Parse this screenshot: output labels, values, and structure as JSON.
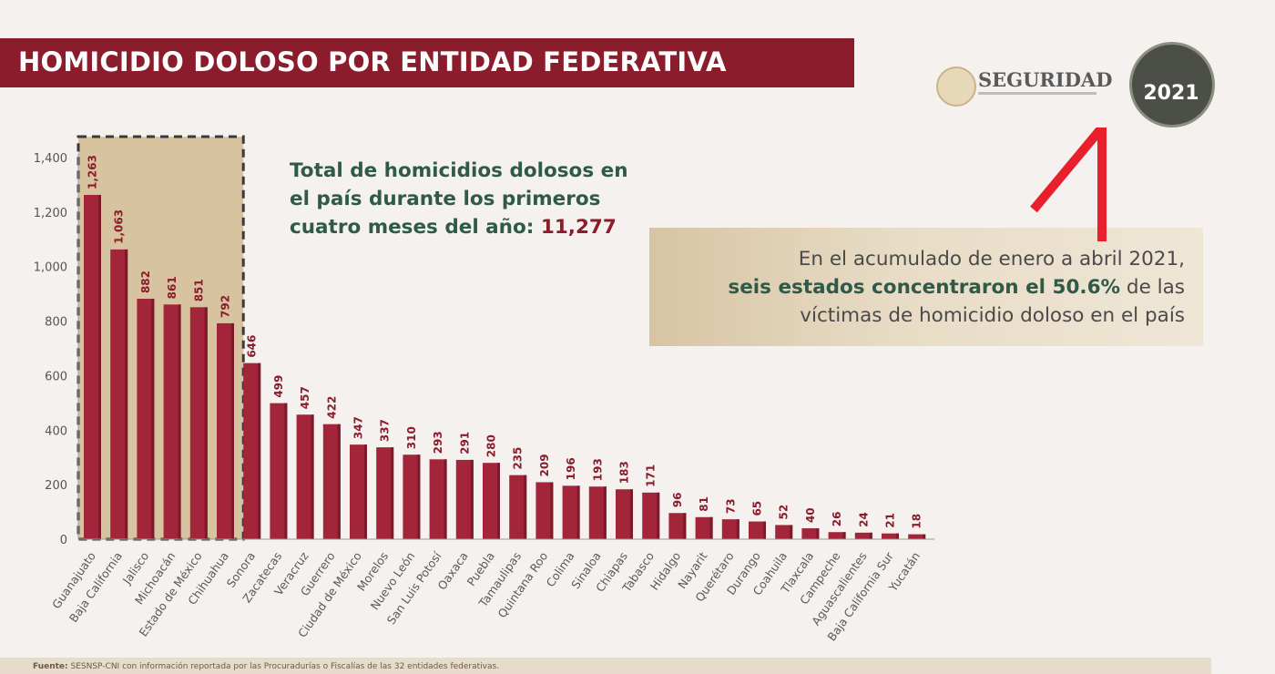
{
  "header": {
    "title": "HOMICIDIO DOLOSO POR ENTIDAD FEDERATIVA"
  },
  "logos": {
    "seguridad": "SEGURIDAD",
    "badge_year": "2021"
  },
  "summary": {
    "total_text": "Total de homicidios dolosos en el país durante los primeros cuatro meses del año:",
    "total_value": "11,277"
  },
  "callout": {
    "line1": "En el acumulado de enero a abril 2021,",
    "bold": "seis estados concentraron el 50.6%",
    "rest1": " de las",
    "line3": "víctimas de homicidio doloso en el país"
  },
  "footer": {
    "label": "Fuente:",
    "text": "SESNSP-CNI con información reportada por las Procuradurías o Fiscalías de las 32 entidades federativas."
  },
  "colors": {
    "bar": "#a3253a",
    "bar_dark": "#7a1a2a",
    "highlight_bg": "#d8c3a0",
    "title_bg": "#8a1c2c",
    "accent_green": "#2f5a48",
    "marker_red": "#e8202e"
  },
  "chart_data": {
    "type": "bar",
    "categories": [
      "Guanajuato",
      "Baja California",
      "Jalisco",
      "Michoacán",
      "Estado de México",
      "Chihuahua",
      "Sonora",
      "Zacatecas",
      "Veracruz",
      "Guerrero",
      "Ciudad de México",
      "Morelos",
      "Nuevo León",
      "San Luis Potosí",
      "Oaxaca",
      "Puebla",
      "Tamaulipas",
      "Quintana Roo",
      "Colima",
      "Sinaloa",
      "Chiapas",
      "Tabasco",
      "Hidalgo",
      "Nayarit",
      "Querétaro",
      "Durango",
      "Coahuila",
      "Tlaxcala",
      "Campeche",
      "Aguascalientes",
      "Baja California Sur",
      "Yucatán"
    ],
    "values": [
      1263,
      1063,
      882,
      861,
      851,
      792,
      646,
      499,
      457,
      422,
      347,
      337,
      310,
      293,
      291,
      280,
      235,
      209,
      196,
      193,
      183,
      171,
      96,
      81,
      73,
      65,
      52,
      40,
      26,
      24,
      21,
      18
    ],
    "data_labels": [
      "1,263",
      "1,063",
      "882",
      "861",
      "851",
      "792",
      "646",
      "499",
      "457",
      "422",
      "347",
      "337",
      "310",
      "293",
      "291",
      "280",
      "235",
      "209",
      "196",
      "193",
      "183",
      "171",
      "96",
      "81",
      "73",
      "65",
      "52",
      "40",
      "26",
      "24",
      "21",
      "18"
    ],
    "y_ticks": [
      "0",
      "200",
      "400",
      "600",
      "800",
      "1,000",
      "1,200",
      "1,400"
    ],
    "ylim": [
      0,
      1400
    ],
    "highlighted_count": 6,
    "title": "",
    "xlabel": "",
    "ylabel": "",
    "grid": false
  }
}
